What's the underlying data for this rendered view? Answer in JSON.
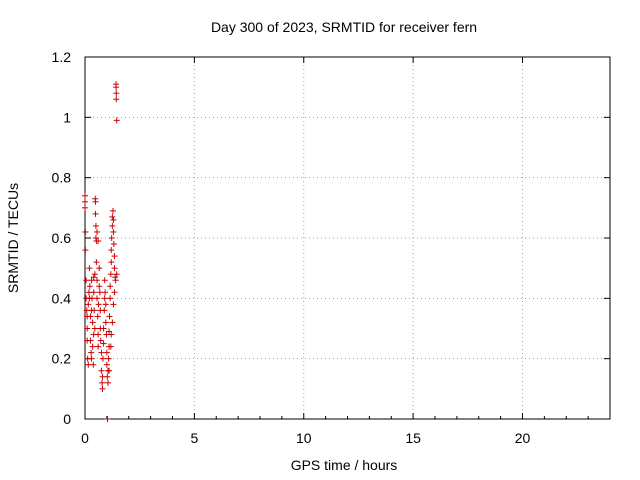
{
  "chart_data": {
    "type": "scatter",
    "title": "Day 300 of 2023, SRMTID for receiver fern",
    "xlabel": "GPS time / hours",
    "ylabel": "SRMTID / TECUs",
    "xlim": [
      0,
      24
    ],
    "ylim": [
      0,
      1.2
    ],
    "xticks": [
      0,
      5,
      10,
      15,
      20
    ],
    "xtick_labels": [
      "0",
      "5",
      "10",
      "15",
      "20"
    ],
    "yticks": [
      0,
      0.2,
      0.4,
      0.6,
      0.8,
      1.0,
      1.2
    ],
    "ytick_labels": [
      "0",
      "0.2",
      "0.4",
      "0.6",
      "0.8",
      "1",
      "1.2"
    ],
    "grid": true,
    "marker": "+",
    "color": "#cc0000",
    "points": [
      [
        0.0,
        0.74
      ],
      [
        0.0,
        0.72
      ],
      [
        0.0,
        0.7
      ],
      [
        0.02,
        0.62
      ],
      [
        0.02,
        0.56
      ],
      [
        0.05,
        0.46
      ],
      [
        0.05,
        0.4
      ],
      [
        0.08,
        0.36
      ],
      [
        0.1,
        0.3
      ],
      [
        0.1,
        0.26
      ],
      [
        0.12,
        0.2
      ],
      [
        0.15,
        0.18
      ],
      [
        0.15,
        0.38
      ],
      [
        0.18,
        0.42
      ],
      [
        0.2,
        0.5
      ],
      [
        0.22,
        0.44
      ],
      [
        0.25,
        0.34
      ],
      [
        0.25,
        0.26
      ],
      [
        0.28,
        0.22
      ],
      [
        0.3,
        0.2
      ],
      [
        0.3,
        0.46
      ],
      [
        0.32,
        0.4
      ],
      [
        0.35,
        0.32
      ],
      [
        0.35,
        0.24
      ],
      [
        0.38,
        0.18
      ],
      [
        0.4,
        0.28
      ],
      [
        0.4,
        0.42
      ],
      [
        0.42,
        0.36
      ],
      [
        0.45,
        0.3
      ],
      [
        0.45,
        0.48
      ],
      [
        0.47,
        0.73
      ],
      [
        0.48,
        0.72
      ],
      [
        0.48,
        0.68
      ],
      [
        0.5,
        0.64
      ],
      [
        0.5,
        0.6
      ],
      [
        0.52,
        0.59
      ],
      [
        0.52,
        0.52
      ],
      [
        0.55,
        0.46
      ],
      [
        0.55,
        0.4
      ],
      [
        0.58,
        0.34
      ],
      [
        0.6,
        0.28
      ],
      [
        0.6,
        0.24
      ],
      [
        0.62,
        0.38
      ],
      [
        0.65,
        0.44
      ],
      [
        0.65,
        0.5
      ],
      [
        0.68,
        0.42
      ],
      [
        0.7,
        0.36
      ],
      [
        0.7,
        0.3
      ],
      [
        0.72,
        0.26
      ],
      [
        0.75,
        0.22
      ],
      [
        0.75,
        0.16
      ],
      [
        0.78,
        0.12
      ],
      [
        0.8,
        0.1
      ],
      [
        0.8,
        0.14
      ],
      [
        0.82,
        0.2
      ],
      [
        0.85,
        0.25
      ],
      [
        0.85,
        0.3
      ],
      [
        0.88,
        0.36
      ],
      [
        0.9,
        0.4
      ],
      [
        0.9,
        0.46
      ],
      [
        0.92,
        0.42
      ],
      [
        0.95,
        0.38
      ],
      [
        0.95,
        0.32
      ],
      [
        0.98,
        0.28
      ],
      [
        1.0,
        0.22
      ],
      [
        1.0,
        0.18
      ],
      [
        1.02,
        0.14
      ],
      [
        1.03,
        0.0
      ],
      [
        1.05,
        0.12
      ],
      [
        1.05,
        0.16
      ],
      [
        1.08,
        0.2
      ],
      [
        1.1,
        0.24
      ],
      [
        1.1,
        0.29
      ],
      [
        1.12,
        0.34
      ],
      [
        1.15,
        0.4
      ],
      [
        1.15,
        0.44
      ],
      [
        1.18,
        0.48
      ],
      [
        1.2,
        0.52
      ],
      [
        1.2,
        0.56
      ],
      [
        1.22,
        0.6
      ],
      [
        1.25,
        0.64
      ],
      [
        1.25,
        0.67
      ],
      [
        1.28,
        0.69
      ],
      [
        1.3,
        0.66
      ],
      [
        1.3,
        0.62
      ],
      [
        1.32,
        0.58
      ],
      [
        1.35,
        0.54
      ],
      [
        1.35,
        0.5
      ],
      [
        1.38,
        0.47
      ],
      [
        1.4,
        0.46
      ],
      [
        1.42,
        1.11
      ],
      [
        1.42,
        1.1
      ],
      [
        1.43,
        1.08
      ],
      [
        1.43,
        1.06
      ],
      [
        1.45,
        0.99
      ],
      [
        1.45,
        0.48
      ],
      [
        1.35,
        0.42
      ],
      [
        1.3,
        0.38
      ],
      [
        1.25,
        0.32
      ],
      [
        1.2,
        0.28
      ],
      [
        1.18,
        0.24
      ],
      [
        1.1,
        0.16
      ],
      [
        0.6,
        0.59
      ],
      [
        0.55,
        0.62
      ],
      [
        0.4,
        0.47
      ],
      [
        0.2,
        0.4
      ],
      [
        0.1,
        0.34
      ],
      [
        0.3,
        0.36
      ]
    ]
  }
}
